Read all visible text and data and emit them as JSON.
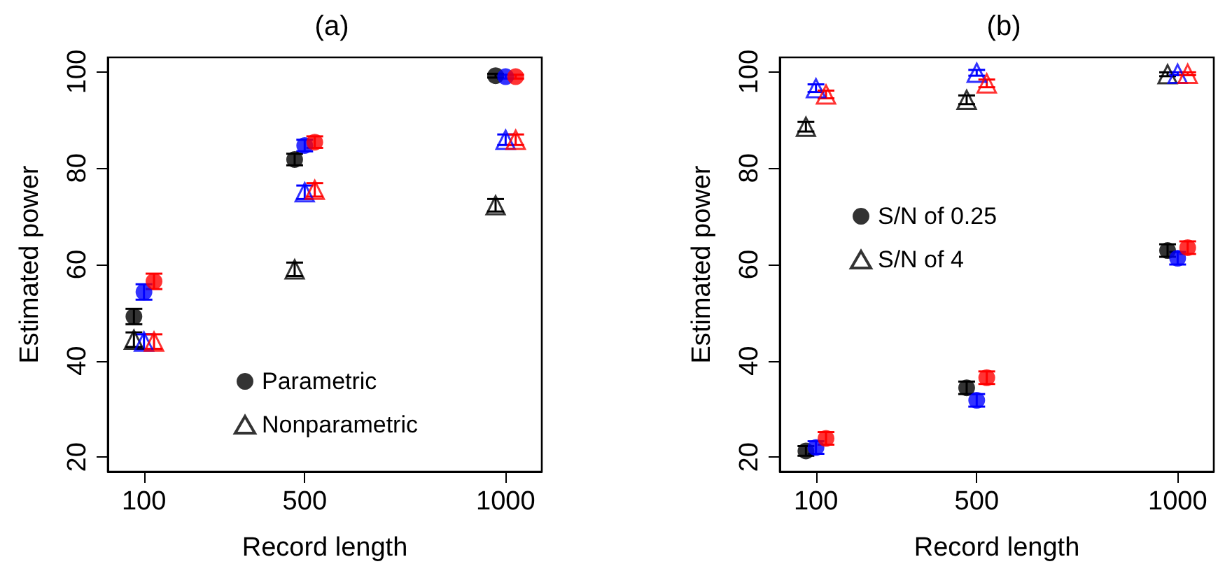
{
  "chart_data": [
    {
      "type": "scatter",
      "title": "(a)",
      "xlabel": "Record length",
      "ylabel": "Estimated power",
      "xlim": [
        10,
        1090
      ],
      "xticks": [
        100,
        500,
        1000
      ],
      "ylim": [
        17,
        103
      ],
      "yticks": [
        20,
        40,
        60,
        80,
        100
      ],
      "grid": false,
      "legend": "bottom",
      "series": [
        {
          "name": "Parametric",
          "color": "#000000",
          "marker": "circle",
          "x": [
            75,
            475,
            975
          ],
          "values": [
            49.2,
            81.8,
            99.2
          ],
          "errors": [
            1.6,
            1.2,
            0.4
          ]
        },
        {
          "color": "#0000ff",
          "marker": "circle",
          "x": [
            100,
            500,
            1000
          ],
          "values": [
            54.3,
            84.7,
            99.0
          ],
          "errors": [
            1.6,
            1.2,
            0.4
          ]
        },
        {
          "color": "#ff0000",
          "marker": "circle",
          "x": [
            125,
            525,
            1025
          ],
          "values": [
            56.5,
            85.4,
            99.0
          ],
          "errors": [
            1.6,
            1.2,
            0.4
          ]
        },
        {
          "name": "Nonparametric",
          "color": "#000000",
          "marker": "triangle",
          "x": [
            75,
            475,
            975
          ],
          "values": [
            44.4,
            59.0,
            72.3
          ],
          "errors": [
            1.5,
            1.4,
            1.3
          ]
        },
        {
          "color": "#0000ff",
          "marker": "triangle",
          "x": [
            100,
            500,
            1000
          ],
          "values": [
            44.0,
            75.0,
            85.9
          ],
          "errors": [
            1.5,
            1.4,
            1.1
          ]
        },
        {
          "color": "#ff0000",
          "marker": "triangle",
          "x": [
            125,
            525,
            1025
          ],
          "values": [
            44.0,
            75.5,
            85.9
          ],
          "errors": [
            1.5,
            1.4,
            1.1
          ]
        }
      ]
    },
    {
      "type": "scatter",
      "title": "(b)",
      "xlabel": "Record length",
      "ylabel": "Estimated power",
      "xlim": [
        10,
        1090
      ],
      "xticks": [
        100,
        500,
        1000
      ],
      "ylim": [
        17,
        103
      ],
      "yticks": [
        20,
        40,
        60,
        80,
        100
      ],
      "grid": false,
      "legend": "left",
      "series": [
        {
          "name": "S/N of 0.25",
          "color": "#000000",
          "marker": "circle",
          "x": [
            75,
            475,
            975
          ],
          "values": [
            21.3,
            34.4,
            62.9
          ],
          "errors": [
            1.0,
            1.3,
            1.3
          ]
        },
        {
          "color": "#0000ff",
          "marker": "circle",
          "x": [
            100,
            500,
            1000
          ],
          "values": [
            22.0,
            31.8,
            61.3
          ],
          "errors": [
            1.3,
            1.3,
            1.3
          ]
        },
        {
          "color": "#ff0000",
          "marker": "circle",
          "x": [
            125,
            525,
            1025
          ],
          "values": [
            23.9,
            36.5,
            63.5
          ],
          "errors": [
            1.3,
            1.3,
            1.3
          ]
        },
        {
          "name": "S/N of 4",
          "color": "#000000",
          "marker": "triangle",
          "x": [
            75,
            475,
            975
          ],
          "values": [
            88.6,
            94.2,
            99.5
          ],
          "errors": [
            1.0,
            0.9,
            0.4
          ]
        },
        {
          "color": "#0000ff",
          "marker": "triangle",
          "x": [
            100,
            500,
            1000
          ],
          "values": [
            96.6,
            99.8,
            99.6
          ],
          "errors": [
            0.8,
            0.6,
            0.3
          ]
        },
        {
          "color": "#ff0000",
          "marker": "triangle",
          "x": [
            125,
            525,
            1025
          ],
          "values": [
            95.3,
            97.6,
            99.6
          ],
          "errors": [
            0.8,
            0.8,
            0.3
          ]
        }
      ]
    }
  ]
}
